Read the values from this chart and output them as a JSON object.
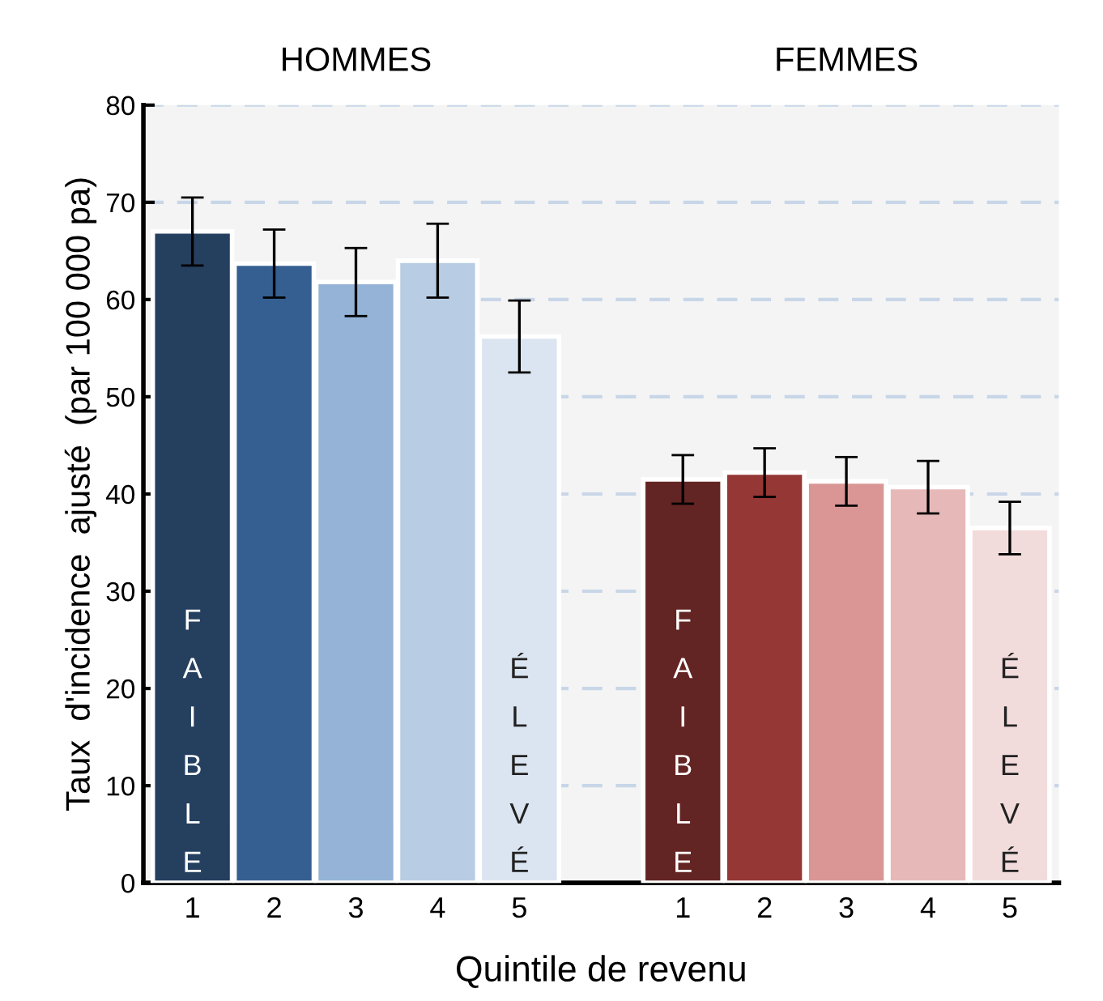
{
  "chart_data": {
    "type": "bar",
    "xlabel": "Quintile de revenu",
    "ylabel": "Taux  d'incidence  ajusté  (par 100 000 pa)",
    "categories": [
      "1",
      "2",
      "3",
      "4",
      "5",
      null,
      "1",
      "2",
      "3",
      "4",
      "5"
    ],
    "values": [
      67.0,
      63.7,
      61.8,
      64.0,
      56.2,
      null,
      41.5,
      42.2,
      41.3,
      40.7,
      36.5
    ],
    "errors": [
      3.5,
      3.5,
      3.5,
      3.8,
      3.7,
      null,
      2.5,
      2.5,
      2.5,
      2.7,
      2.7
    ],
    "colors": [
      "#253f5f",
      "#355f91",
      "#94b3d7",
      "#b8cde4",
      "#dbe5f1",
      "#ffffff",
      "#632523",
      "#953735",
      "#d99694",
      "#e6b9b8",
      "#f2dcdb"
    ],
    "ylim": [
      0,
      80
    ],
    "yticks": [
      0,
      10,
      20,
      30,
      40,
      50,
      60,
      70,
      80
    ],
    "grid": "y",
    "annotations": [
      "HOMMES",
      "FEMMES",
      "FAIBLE",
      "ÉLEVÉ",
      "FAIBLE",
      "ÉLEVÉ"
    ]
  }
}
